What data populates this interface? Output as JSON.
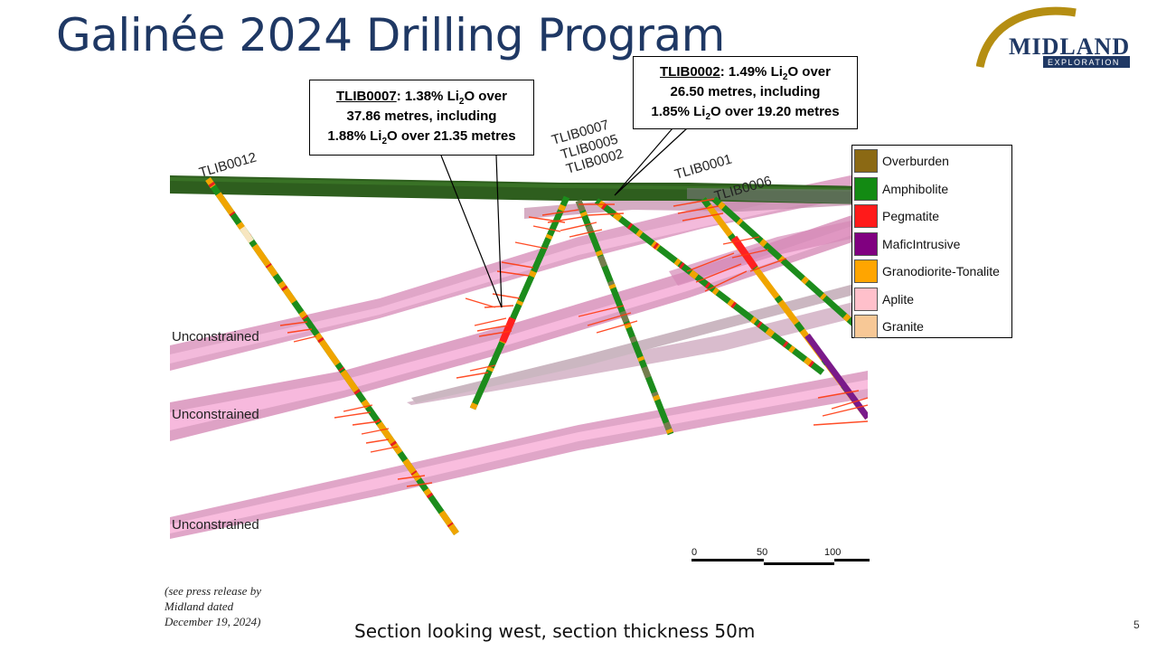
{
  "title": "Galinée 2024 Drilling Program",
  "logo": {
    "text_main": "MIDLAND",
    "text_sub": "EXPLORATION",
    "colors": {
      "arc": "#b58e12",
      "main": "#1f3864",
      "sub_bg": "#1f3864"
    }
  },
  "callouts": [
    {
      "hole": "TLIB0007",
      "line1_rest": ": 1.38% Li",
      "line1_sub": "2",
      "line1_end": "O over",
      "line2": "37.86 metres, including",
      "line3_pre": "1.88% Li",
      "line3_sub": "2",
      "line3_end": "O over 21.35 metres"
    },
    {
      "hole": "TLIB0002",
      "line1_rest": ": 1.49% Li",
      "line1_sub": "2",
      "line1_end": "O over",
      "line2": "26.50 metres, including",
      "line3_pre": "1.85% Li",
      "line3_sub": "2",
      "line3_end": "O over 19.20 metres"
    }
  ],
  "hole_labels": {
    "tlib0012": "TLIB0012",
    "tlib0007": "TLIB0007",
    "tlib0005": "TLIB0005",
    "tlib0002": "TLIB0002",
    "tlib0001": "TLIB0001",
    "tlib0006": "TLIB0006"
  },
  "unconstrained_labels": [
    "Unconstrained",
    "Unconstrained",
    "Unconstrained"
  ],
  "legend": [
    {
      "label": "Overburden",
      "color": "#8b6914"
    },
    {
      "label": "Amphibolite",
      "color": "#138a13"
    },
    {
      "label": "Pegmatite",
      "color": "#ff1a1a"
    },
    {
      "label": "MaficIntrusive",
      "color": "#800080"
    },
    {
      "label": "Granodiorite-Tonalite",
      "color": "#ffa500"
    },
    {
      "label": "Aplite",
      "color": "#ffc0cb"
    },
    {
      "label": "Granite",
      "color": "#f7c896"
    }
  ],
  "scale_bar": {
    "ticks": [
      "0",
      "50",
      "100"
    ]
  },
  "footnote": [
    "(see press release by",
    "Midland dated",
    "December 19, 2024)"
  ],
  "caption": "Section looking west, section thickness 50m",
  "page_number": "5",
  "colors": {
    "title": "#1f3864",
    "dyke_fill": "#e48ec0",
    "overburden_bar": "#2e5e1e"
  }
}
